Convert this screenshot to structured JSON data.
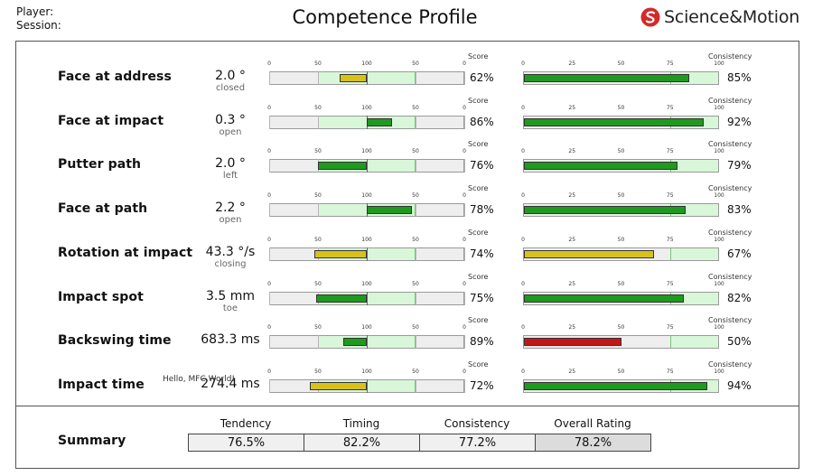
{
  "header": {
    "player_label": "Player:",
    "session_label": "Session:",
    "title": "Competence Profile",
    "logo_text": "Science&Motion"
  },
  "score_axis": {
    "label": "Score",
    "ticks": [
      "0",
      "50",
      "100",
      "50",
      "0"
    ]
  },
  "consistency_axis": {
    "label": "Consistency",
    "ticks": [
      "0",
      "25",
      "50",
      "75",
      "100"
    ]
  },
  "annotation": "Hello, MFC World!",
  "colors": {
    "green": "#1f9a1f",
    "yellow": "#d8c21a",
    "red": "#c41818",
    "zone": "#d8f7d8",
    "bg": "#eeeeee"
  },
  "rows": [
    {
      "label": "Face at address",
      "value": "2.0 °",
      "unit": "closed",
      "score_pct": "62%",
      "consistency_pct": "85%",
      "bar_from": -0.28,
      "bar_to": 0,
      "bar_color": "yellow",
      "zone_from": -0.5,
      "zone_to": 0.5,
      "consistency": 85,
      "cons_zone": 75,
      "cons_color": "green"
    },
    {
      "label": "Face at impact",
      "value": "0.3 °",
      "unit": "open",
      "score_pct": "86%",
      "consistency_pct": "92%",
      "bar_from": 0,
      "bar_to": 0.26,
      "bar_color": "green",
      "zone_from": -0.5,
      "zone_to": 0.5,
      "consistency": 92,
      "cons_zone": 75,
      "cons_color": "green"
    },
    {
      "label": "Putter path",
      "value": "2.0 °",
      "unit": "left",
      "score_pct": "76%",
      "consistency_pct": "79%",
      "bar_from": -0.5,
      "bar_to": 0,
      "bar_color": "green",
      "zone_from": -0.5,
      "zone_to": 0.5,
      "consistency": 79,
      "cons_zone": 75,
      "cons_color": "green"
    },
    {
      "label": "Face at path",
      "value": "2.2 °",
      "unit": "open",
      "score_pct": "78%",
      "consistency_pct": "83%",
      "bar_from": 0,
      "bar_to": 0.46,
      "bar_color": "green",
      "zone_from": -0.5,
      "zone_to": 0.5,
      "consistency": 83,
      "cons_zone": 75,
      "cons_color": "green"
    },
    {
      "label": "Rotation at impact",
      "value": "43.3 °/s",
      "unit": "closing",
      "score_pct": "74%",
      "consistency_pct": "67%",
      "bar_from": -0.54,
      "bar_to": 0,
      "bar_color": "yellow",
      "zone_from": -0.5,
      "zone_to": 0.5,
      "consistency": 67,
      "cons_zone": 75,
      "cons_color": "yellow"
    },
    {
      "label": "Impact spot",
      "value": "3.5 mm",
      "unit": "toe",
      "score_pct": "75%",
      "consistency_pct": "82%",
      "bar_from": -0.52,
      "bar_to": 0,
      "bar_color": "green",
      "zone_from": -0.5,
      "zone_to": 0.5,
      "consistency": 82,
      "cons_zone": 75,
      "cons_color": "green"
    },
    {
      "label": "Backswing time",
      "value": "683.3 ms",
      "unit": "",
      "score_pct": "89%",
      "consistency_pct": "50%",
      "bar_from": -0.24,
      "bar_to": 0,
      "bar_color": "green",
      "zone_from": -0.5,
      "zone_to": 0.5,
      "consistency": 50,
      "cons_zone": 75,
      "cons_color": "red"
    },
    {
      "label": "Impact time",
      "value": "274.4 ms",
      "unit": "",
      "score_pct": "72%",
      "consistency_pct": "94%",
      "bar_from": -0.58,
      "bar_to": 0,
      "bar_color": "yellow",
      "zone_from": -0.5,
      "zone_to": 0.5,
      "consistency": 94,
      "cons_zone": 75,
      "cons_color": "green"
    }
  ],
  "summary": {
    "label": "Summary",
    "items": [
      {
        "header": "Tendency",
        "value": "76.5%"
      },
      {
        "header": "Timing",
        "value": "82.2%"
      },
      {
        "header": "Consistency",
        "value": "77.2%"
      },
      {
        "header": "Overall Rating",
        "value": "78.2%"
      }
    ]
  },
  "chart_data": {
    "type": "bar",
    "title": "Competence Profile",
    "categories": [
      "Face at address",
      "Face at impact",
      "Putter path",
      "Face at path",
      "Rotation at impact",
      "Impact spot",
      "Backswing time",
      "Impact time"
    ],
    "series": [
      {
        "name": "Score",
        "values": [
          62,
          86,
          76,
          78,
          74,
          75,
          89,
          72
        ]
      },
      {
        "name": "Consistency",
        "values": [
          85,
          92,
          79,
          83,
          67,
          82,
          50,
          94
        ]
      }
    ],
    "score_axis_ticks": [
      "0",
      "50",
      "100",
      "50",
      "0"
    ],
    "consistency_axis_ticks": [
      "0",
      "25",
      "50",
      "75",
      "100"
    ],
    "ylim": [
      0,
      100
    ]
  }
}
